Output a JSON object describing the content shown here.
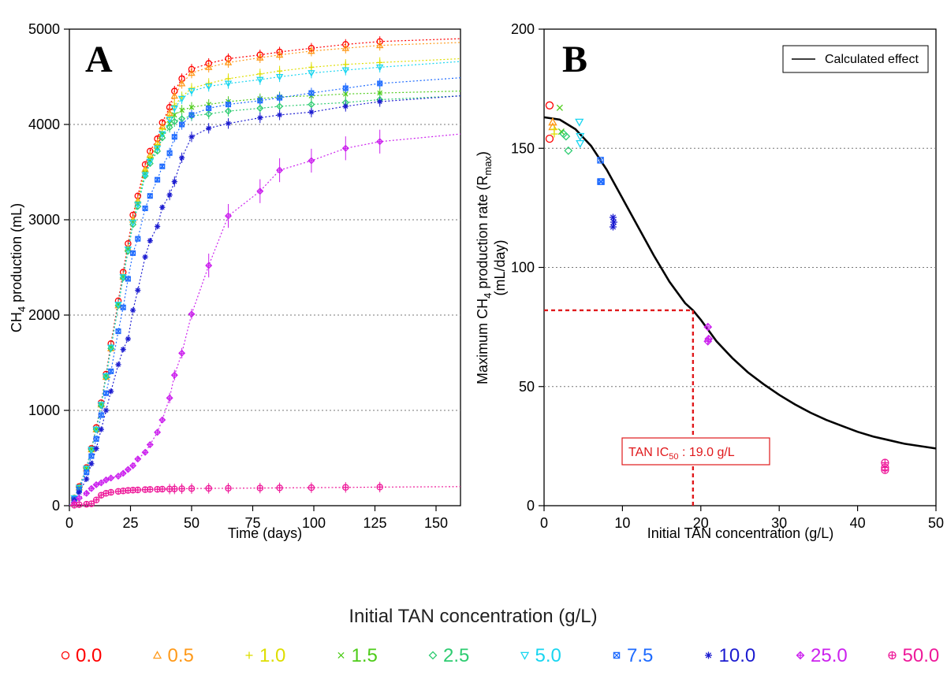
{
  "colors": {
    "0.0": "#ff0000",
    "0.5": "#ff9a1a",
    "1.0": "#dede00",
    "1.5": "#4ecc1a",
    "2.5": "#2ecc71",
    "5.0": "#18d5f0",
    "7.5": "#1e6bff",
    "10.0": "#1c1cd0",
    "25.0": "#cc22ee",
    "50.0": "#ee1a9a"
  },
  "chart_data": [
    {
      "type": "line",
      "panel_label": "A",
      "xlabel": "Time (days)",
      "ylabel": "CH4 production (mL)",
      "xlim": [
        0,
        160
      ],
      "ylim": [
        0,
        5000
      ],
      "xticks": [
        0,
        25,
        50,
        75,
        100,
        125,
        150
      ],
      "yticks": [
        0,
        1000,
        2000,
        3000,
        4000,
        5000
      ],
      "hgrid": [
        1000,
        2000,
        3000,
        4000
      ],
      "x": [
        0,
        2,
        4,
        7,
        9,
        11,
        13,
        15,
        17,
        20,
        22,
        24,
        26,
        28,
        31,
        33,
        36,
        38,
        41,
        43,
        46,
        50,
        57,
        65,
        78,
        86,
        99,
        113,
        127,
        160
      ],
      "series": [
        {
          "name": "0.0",
          "marker": "circle",
          "values": [
            0,
            80,
            200,
            400,
            600,
            820,
            1080,
            1380,
            1700,
            2150,
            2450,
            2750,
            3050,
            3250,
            3580,
            3720,
            3850,
            4020,
            4180,
            4350,
            4480,
            4580,
            4640,
            4690,
            4730,
            4760,
            4800,
            4840,
            4870,
            4900
          ]
        },
        {
          "name": "0.5",
          "marker": "triangle",
          "values": [
            0,
            80,
            190,
            390,
            590,
            800,
            1060,
            1350,
            1650,
            2100,
            2400,
            2700,
            3000,
            3200,
            3530,
            3680,
            3810,
            3980,
            4120,
            4300,
            4430,
            4540,
            4600,
            4650,
            4700,
            4730,
            4770,
            4800,
            4830,
            4860
          ]
        },
        {
          "name": "1.0",
          "marker": "plus",
          "values": [
            0,
            80,
            190,
            390,
            590,
            800,
            1060,
            1360,
            1660,
            2110,
            2410,
            2700,
            2990,
            3190,
            3520,
            3660,
            3790,
            3950,
            4080,
            4200,
            4290,
            4380,
            4430,
            4480,
            4530,
            4560,
            4600,
            4630,
            4650,
            4690
          ]
        },
        {
          "name": "1.5",
          "marker": "x",
          "values": [
            0,
            80,
            190,
            390,
            590,
            800,
            1060,
            1360,
            1660,
            2110,
            2400,
            2690,
            2980,
            3170,
            3490,
            3630,
            3760,
            3900,
            4010,
            4100,
            4150,
            4180,
            4210,
            4240,
            4270,
            4290,
            4300,
            4320,
            4330,
            4350
          ]
        },
        {
          "name": "2.5",
          "marker": "diamond",
          "values": [
            0,
            80,
            190,
            390,
            590,
            800,
            1050,
            1350,
            1650,
            2100,
            2390,
            2670,
            2950,
            3140,
            3460,
            3590,
            3720,
            3860,
            3970,
            4030,
            4060,
            4090,
            4110,
            4140,
            4170,
            4190,
            4210,
            4230,
            4260,
            4300
          ]
        },
        {
          "name": "5.0",
          "marker": "triangle-down",
          "values": [
            0,
            80,
            190,
            390,
            590,
            800,
            1060,
            1360,
            1660,
            2110,
            2400,
            2690,
            2970,
            3160,
            3470,
            3610,
            3750,
            3900,
            4050,
            4170,
            4270,
            4350,
            4400,
            4430,
            4470,
            4500,
            4540,
            4570,
            4600,
            4660
          ]
        },
        {
          "name": "7.5",
          "marker": "box-x",
          "values": [
            0,
            70,
            170,
            350,
            520,
            700,
            950,
            1180,
            1410,
            1830,
            2080,
            2380,
            2650,
            2800,
            3120,
            3250,
            3420,
            3560,
            3700,
            3870,
            4000,
            4100,
            4170,
            4210,
            4250,
            4280,
            4330,
            4380,
            4430,
            4490
          ]
        },
        {
          "name": "10.0",
          "marker": "asterisk",
          "values": [
            0,
            60,
            140,
            280,
            440,
            600,
            800,
            1000,
            1200,
            1480,
            1640,
            1750,
            2050,
            2260,
            2610,
            2780,
            2930,
            3130,
            3260,
            3400,
            3650,
            3870,
            3960,
            4010,
            4070,
            4100,
            4130,
            4190,
            4240,
            4300
          ]
        },
        {
          "name": "25.0",
          "marker": "diamond-plus",
          "values": [
            0,
            30,
            80,
            130,
            180,
            220,
            240,
            270,
            290,
            310,
            340,
            380,
            420,
            490,
            560,
            640,
            770,
            900,
            1130,
            1370,
            1600,
            2010,
            2520,
            3040,
            3300,
            3520,
            3620,
            3750,
            3820,
            3900
          ]
        },
        {
          "name": "50.0",
          "marker": "circle-plus",
          "values": [
            0,
            5,
            10,
            15,
            20,
            60,
            110,
            130,
            140,
            150,
            155,
            160,
            163,
            165,
            168,
            170,
            172,
            174,
            175,
            176,
            178,
            180,
            182,
            183,
            185,
            187,
            189,
            192,
            195,
            200
          ]
        }
      ]
    },
    {
      "type": "scatter",
      "panel_label": "B",
      "xlabel": "Initial TAN concentration (g/L)",
      "ylabel_line1": "Maximum CH4 production rate (Rmax)",
      "ylabel_line2": "(mL/day)",
      "xlim": [
        0,
        50
      ],
      "ylim": [
        0,
        200
      ],
      "xticks": [
        0,
        10,
        20,
        30,
        40,
        50
      ],
      "yticks": [
        0,
        50,
        100,
        150,
        200
      ],
      "hgrid": [
        50,
        100,
        150
      ],
      "legend": {
        "label": "Calculated effect",
        "position": "top-right"
      },
      "calculated_effect": {
        "x": [
          0,
          2,
          4,
          6,
          8,
          10,
          12,
          14,
          16,
          18,
          19,
          20,
          22,
          24,
          26,
          28,
          30,
          32,
          34,
          36,
          38,
          40,
          42,
          44,
          46,
          48,
          50
        ],
        "y": [
          163,
          162,
          158,
          151,
          141,
          129,
          117,
          105,
          94,
          85,
          82,
          78,
          69,
          62,
          56,
          51,
          46.5,
          42.5,
          39,
          36,
          33.5,
          31,
          29,
          27.5,
          26,
          25,
          24
        ]
      },
      "ic50": {
        "x": 19.0,
        "y": 82,
        "label": "TAN IC50 : 19.0 g/L"
      },
      "points": [
        {
          "group": "0.0",
          "marker": "circle",
          "x": [
            0.7,
            0.7
          ],
          "y": [
            168,
            154
          ]
        },
        {
          "group": "0.5",
          "marker": "triangle",
          "x": [
            1.1,
            1.1,
            1.1
          ],
          "y": [
            161,
            159,
            161
          ]
        },
        {
          "group": "1.0",
          "marker": "plus",
          "x": [
            1.3,
            1.3
          ],
          "y": [
            158,
            156
          ]
        },
        {
          "group": "1.5",
          "marker": "x",
          "x": [
            2.0,
            2.2
          ],
          "y": [
            167,
            157
          ]
        },
        {
          "group": "2.5",
          "marker": "diamond",
          "x": [
            2.5,
            2.8,
            3.1
          ],
          "y": [
            156,
            155,
            149
          ]
        },
        {
          "group": "5.0",
          "marker": "triangle-down",
          "x": [
            4.5,
            4.6,
            4.6
          ],
          "y": [
            161,
            155,
            152
          ]
        },
        {
          "group": "7.5",
          "marker": "box-x",
          "x": [
            7.2,
            7.3,
            7.2
          ],
          "y": [
            145,
            136,
            136
          ]
        },
        {
          "group": "10.0",
          "marker": "asterisk",
          "x": [
            8.8,
            8.9,
            8.8
          ],
          "y": [
            121,
            119,
            117
          ]
        },
        {
          "group": "25.0",
          "marker": "diamond-plus",
          "x": [
            20.9,
            21.0,
            20.9
          ],
          "y": [
            75,
            70,
            69
          ]
        },
        {
          "group": "50.0",
          "marker": "circle-plus",
          "x": [
            43.5,
            43.5,
            43.5
          ],
          "y": [
            18,
            16,
            15
          ]
        }
      ]
    }
  ],
  "legend": {
    "title": "Initial TAN concentration (g/L)",
    "items": [
      {
        "label": "0.0",
        "marker": "circle"
      },
      {
        "label": "0.5",
        "marker": "triangle"
      },
      {
        "label": "1.0",
        "marker": "plus"
      },
      {
        "label": "1.5",
        "marker": "x"
      },
      {
        "label": "2.5",
        "marker": "diamond"
      },
      {
        "label": "5.0",
        "marker": "triangle-down"
      },
      {
        "label": "7.5",
        "marker": "box-x"
      },
      {
        "label": "10.0",
        "marker": "asterisk"
      },
      {
        "label": "25.0",
        "marker": "diamond-plus"
      },
      {
        "label": "50.0",
        "marker": "circle-plus"
      }
    ]
  }
}
